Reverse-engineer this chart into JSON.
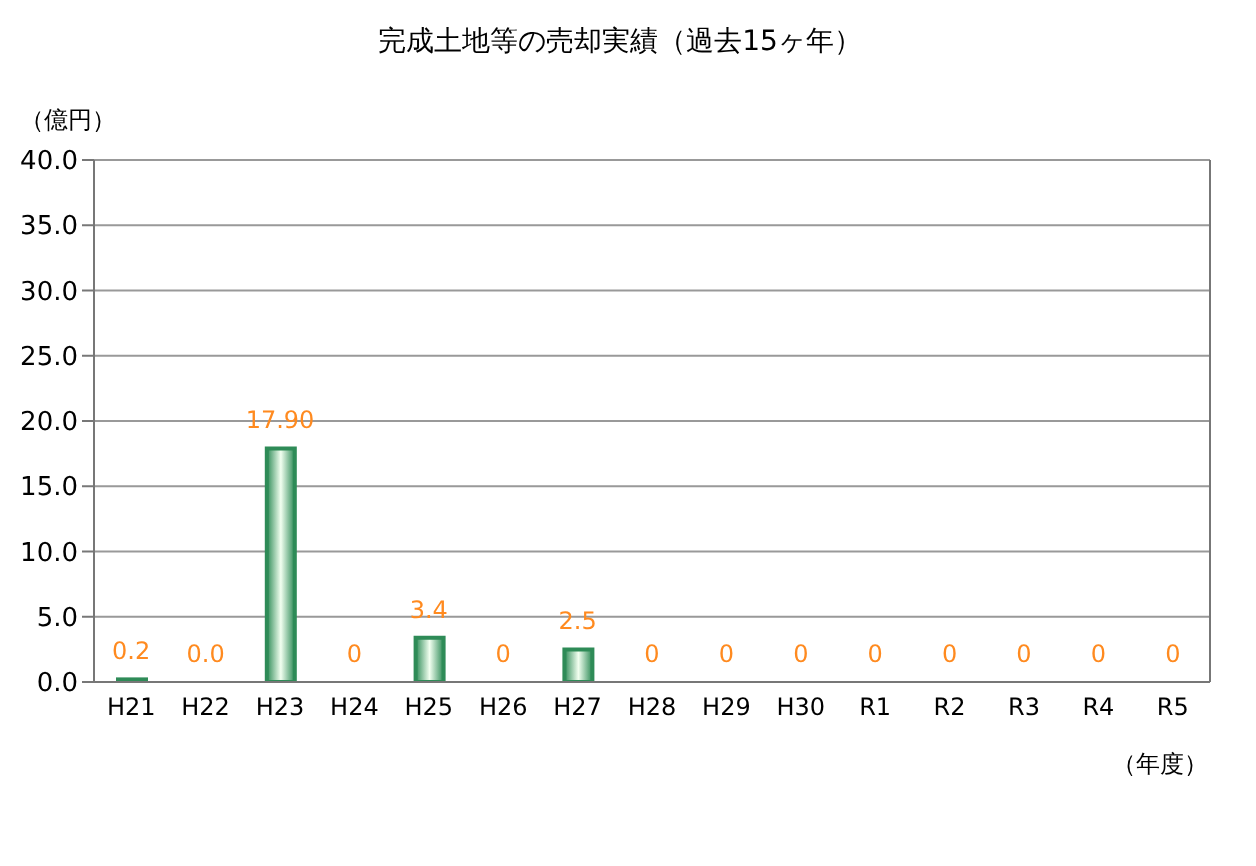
{
  "chart_data": {
    "type": "bar",
    "title": "完成土地等の売却実績（過去15ヶ年）",
    "ylabel": "（億円）",
    "xlabel": "（年度）",
    "categories": [
      "H21",
      "H22",
      "H23",
      "H24",
      "H25",
      "H26",
      "H27",
      "H28",
      "H29",
      "H30",
      "R1",
      "R2",
      "R3",
      "R4",
      "R5"
    ],
    "values": [
      0.2,
      0.0,
      17.9,
      0,
      3.4,
      0,
      2.5,
      0,
      0,
      0,
      0,
      0,
      0,
      0,
      0
    ],
    "value_labels": [
      "0.2",
      "0.0",
      "17.90",
      "0",
      "3.4",
      "0",
      "2.5",
      "0",
      "0",
      "0",
      "0",
      "0",
      "0",
      "0",
      "0"
    ],
    "color": "#2e8b57",
    "ylim": [
      0,
      40
    ],
    "yticks": [
      {
        "value": 0,
        "label": "0.0"
      },
      {
        "value": 5,
        "label": "5.0"
      },
      {
        "value": 10,
        "label": "10.0"
      },
      {
        "value": 15,
        "label": "15.0"
      },
      {
        "value": 20,
        "label": "20.0"
      },
      {
        "value": 25,
        "label": "25.0"
      },
      {
        "value": 30,
        "label": "30.0"
      },
      {
        "value": 35,
        "label": "35.0"
      },
      {
        "value": 40,
        "label": "40.0"
      }
    ],
    "grid": "y",
    "legend": false
  }
}
